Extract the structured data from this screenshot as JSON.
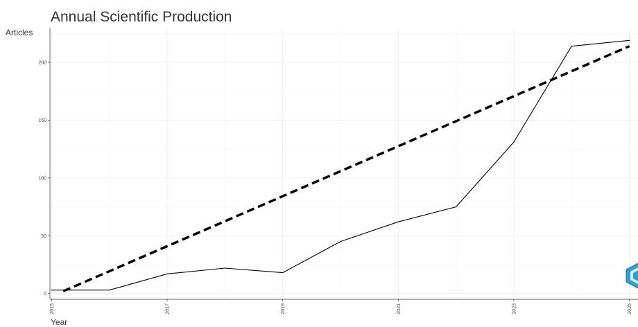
{
  "chart_data": {
    "type": "line",
    "title": "Annual Scientific Production",
    "xlabel": "Year",
    "ylabel": "Articles",
    "x": [
      2015,
      2016,
      2017,
      2018,
      2019,
      2020,
      2021,
      2022,
      2023,
      2024,
      2025
    ],
    "series": [
      {
        "values": [
          3,
          3,
          17,
          22,
          18,
          45,
          62,
          75,
          131,
          214,
          219
        ],
        "color": "#000000",
        "style": "solid"
      }
    ],
    "trend": {
      "x": [
        2015.2,
        2025
      ],
      "y": [
        2,
        214
      ],
      "color": "#000000",
      "style": "dashed"
    },
    "x_ticks": [
      "2015",
      "2017",
      "2019",
      "2021",
      "2023",
      "2025"
    ],
    "y_ticks": [
      "0",
      "50",
      "100",
      "150",
      "200"
    ],
    "xlim": [
      2014.97,
      2025.15
    ],
    "ylim": [
      -5,
      230
    ],
    "grid": true,
    "logo_icon": "bibliometrix-hex-logo",
    "accent_color": "#2f9fd8"
  }
}
